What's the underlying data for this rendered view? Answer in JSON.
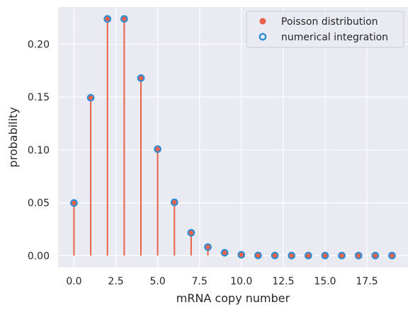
{
  "chart_data": {
    "type": "scatter",
    "xlabel": "mRNA copy number",
    "ylabel": "probability",
    "xlim": [
      -0.95,
      19.95
    ],
    "ylim": [
      -0.0112,
      0.2352
    ],
    "xticks": [
      "0.0",
      "2.5",
      "5.0",
      "7.5",
      "10.0",
      "12.5",
      "15.0",
      "17.5"
    ],
    "xtick_values": [
      0,
      2.5,
      5,
      7.5,
      10,
      12.5,
      15,
      17.5
    ],
    "yticks": [
      "0.00",
      "0.05",
      "0.10",
      "0.15",
      "0.20"
    ],
    "ytick_values": [
      0,
      0.05,
      0.1,
      0.15,
      0.2
    ],
    "grid": true,
    "legend_position": "top-right",
    "x": [
      0,
      1,
      2,
      3,
      4,
      5,
      6,
      7,
      8,
      9,
      10,
      11,
      12,
      13,
      14,
      15,
      16,
      17,
      18,
      19
    ],
    "series": [
      {
        "name": "Poisson distribution",
        "style": "stem with filled markers",
        "color": "#e8624a",
        "values": [
          0.0498,
          0.1494,
          0.224,
          0.224,
          0.168,
          0.1008,
          0.0504,
          0.0216,
          0.0081,
          0.0027,
          0.0008,
          0.0002,
          0.0001,
          0,
          0,
          0,
          0,
          0,
          0,
          0
        ]
      },
      {
        "name": "numerical integration",
        "style": "hollow markers",
        "color": "#2b8cd6",
        "values": [
          0.0498,
          0.1494,
          0.224,
          0.224,
          0.168,
          0.1008,
          0.0504,
          0.0216,
          0.0081,
          0.0027,
          0.0008,
          0.0002,
          0.0001,
          0,
          0,
          0,
          0,
          0,
          0,
          0
        ]
      }
    ],
    "colors": {
      "plot_background": "#eaeaf2",
      "grid": "#ffffff",
      "text": "#262626"
    }
  }
}
